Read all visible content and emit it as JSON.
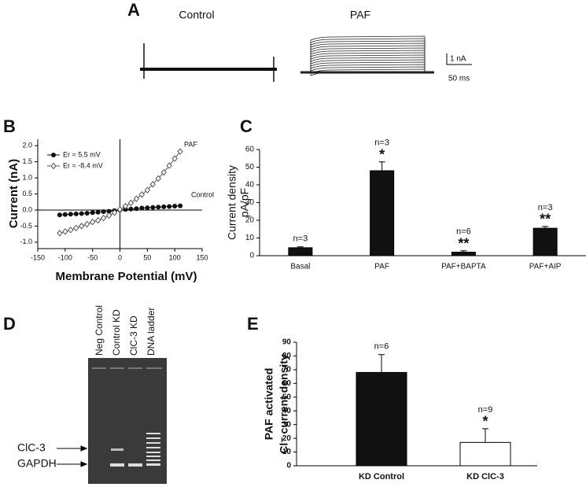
{
  "panel_a": {
    "label": "A",
    "control": "Control",
    "paf": "PAF",
    "scale_current": "1 nA",
    "scale_time": "50 ms"
  },
  "panel_d": {
    "label": "D",
    "lanes": [
      "Neg Control",
      "Control KD",
      "ClC-3 KD",
      "DNA ladder"
    ],
    "bands": [
      "ClC-3",
      "GAPDH"
    ]
  },
  "chart_data": [
    {
      "type": "line",
      "panel": "B",
      "xlabel": "Membrane Potential (mV)",
      "ylabel": "Current (nA)",
      "x": [
        -110,
        -100,
        -90,
        -80,
        -70,
        -60,
        -50,
        -40,
        -30,
        -20,
        -10,
        0,
        10,
        20,
        30,
        40,
        50,
        60,
        70,
        80,
        90,
        100,
        110
      ],
      "series": [
        {
          "name": "Er = 5.5 mV",
          "color": "#111111",
          "marker": "circle",
          "values": [
            -0.15,
            -0.14,
            -0.13,
            -0.12,
            -0.11,
            -0.1,
            -0.08,
            -0.07,
            -0.05,
            -0.04,
            -0.02,
            0.0,
            0.02,
            0.03,
            0.04,
            0.06,
            0.07,
            0.08,
            0.09,
            0.1,
            0.11,
            0.12,
            0.13
          ]
        },
        {
          "name": "Er = -8.4 mV",
          "color": "#555555",
          "marker": "diamond",
          "values": [
            -0.72,
            -0.67,
            -0.62,
            -0.56,
            -0.5,
            -0.44,
            -0.37,
            -0.32,
            -0.25,
            -0.17,
            -0.08,
            0.02,
            0.12,
            0.22,
            0.35,
            0.48,
            0.62,
            0.8,
            0.98,
            1.17,
            1.38,
            1.6,
            1.82
          ]
        }
      ],
      "annotations": [
        "PAF",
        "Control"
      ],
      "xlim": [
        -150,
        150
      ],
      "xticks": [
        -150,
        -100,
        -50,
        0,
        50,
        100,
        150
      ],
      "ylim": [
        -1.2,
        2.2
      ],
      "yticks": [
        {
          "value": -1,
          "label": "-1.0"
        },
        {
          "value": -0.5,
          "label": "-0.5"
        },
        {
          "value": 0,
          "label": "0.0"
        },
        {
          "value": 0.5,
          "label": "0.5"
        },
        {
          "value": 1,
          "label": "1.0"
        },
        {
          "value": 1.5,
          "label": "1.5"
        },
        {
          "value": 2,
          "label": "2.0"
        }
      ]
    },
    {
      "type": "bar",
      "panel": "C",
      "ylabel": [
        "Current density",
        "pA/pF"
      ],
      "categories": [
        "Basal",
        "PAF",
        "PAF+BAPTA",
        "PAF+AIP"
      ],
      "values": [
        4.5,
        48,
        2,
        15.5
      ],
      "errors": [
        0.5,
        5,
        0.8,
        1
      ],
      "colors": [
        "#111111",
        "#111111",
        "#111111",
        "#111111"
      ],
      "n_labels": [
        "n=3",
        "n=3",
        "n=6",
        "n=3"
      ],
      "significance": [
        null,
        "*",
        "**",
        "**"
      ],
      "ylim": [
        0,
        60
      ],
      "yticks": [
        0,
        10,
        20,
        30,
        40,
        50,
        60
      ]
    },
    {
      "type": "bar",
      "panel": "E",
      "ylabel": [
        "PAF activated",
        "Cl⁻ current density"
      ],
      "categories": [
        "KD Control",
        "KD ClC-3"
      ],
      "values": [
        68,
        17
      ],
      "errors": [
        13,
        10
      ],
      "colors": [
        "#111111",
        "#ffffff"
      ],
      "n_labels": [
        "n=6",
        "n=9"
      ],
      "significance": [
        null,
        "*"
      ],
      "ylim": [
        0,
        90
      ],
      "yticks": [
        0,
        10,
        20,
        30,
        40,
        50,
        60,
        70,
        80,
        90
      ]
    }
  ]
}
